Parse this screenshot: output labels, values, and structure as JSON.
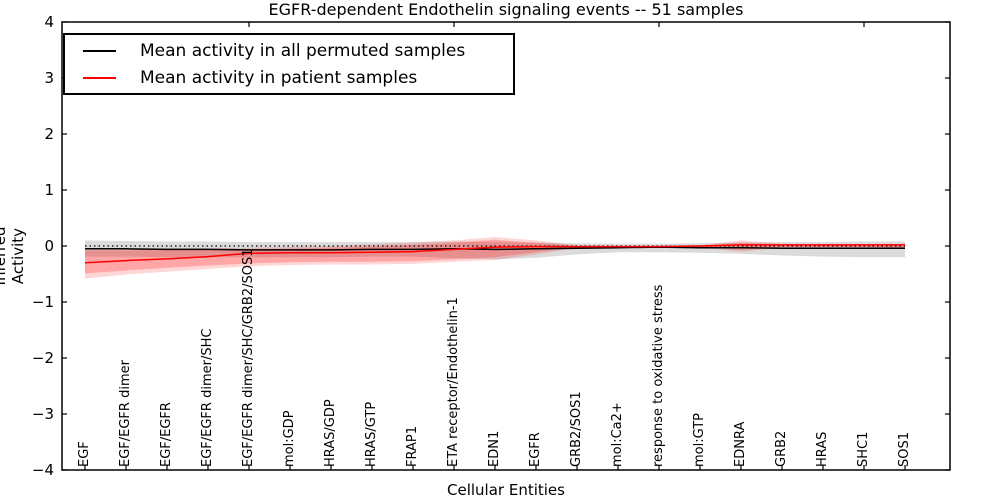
{
  "chart_data": {
    "type": "line",
    "title": "EGFR-dependent Endothelin signaling events -- 51 samples",
    "xlabel": "Cellular Entities",
    "ylabel": "Inferred Activity",
    "ylim": [
      -4,
      4
    ],
    "yticks": [
      4,
      3,
      2,
      1,
      0,
      -1,
      -2,
      -3,
      -4
    ],
    "grid": false,
    "legend_position": "upper left",
    "zero_reference_line": {
      "y": 0,
      "style": "dotted",
      "color": "#000000"
    },
    "categories": [
      "EGF",
      "EGF/EGFR dimer",
      "EGF/EGFR",
      "EGF/EGFR dimer/SHC",
      "EGF/EGFR dimer/SHC/GRB2/SOS1",
      "mol:GDP",
      "HRAS/GDP",
      "HRAS/GTP",
      "FRAP1",
      "ETA receptor/Endothelin-1",
      "EDN1",
      "EGFR",
      "GRB2/SOS1",
      "mol:Ca2+",
      "response to oxidative stress",
      "mol:GTP",
      "EDNRA",
      "GRB2",
      "HRAS",
      "SHC1",
      "SOS1"
    ],
    "top_tick_indices": [
      4,
      9,
      14,
      19
    ],
    "series": [
      {
        "name": "Mean activity in all permuted samples",
        "color": "#000000",
        "values": [
          -0.05,
          -0.05,
          -0.06,
          -0.06,
          -0.07,
          -0.07,
          -0.07,
          -0.06,
          -0.06,
          -0.05,
          -0.06,
          -0.05,
          -0.04,
          -0.03,
          -0.02,
          -0.03,
          -0.03,
          -0.04,
          -0.04,
          -0.04,
          -0.04
        ],
        "bands": [
          {
            "fill": "rgba(110,110,110,0.25)",
            "top": [
              0.1,
              0.09,
              0.08,
              0.08,
              0.07,
              0.07,
              0.07,
              0.07,
              0.07,
              0.08,
              0.07,
              0.06,
              0.05,
              0.04,
              0.04,
              0.05,
              0.06,
              0.07,
              0.07,
              0.08,
              0.08
            ],
            "bottom": [
              -0.19,
              -0.19,
              -0.2,
              -0.2,
              -0.2,
              -0.2,
              -0.2,
              -0.19,
              -0.19,
              -0.22,
              -0.24,
              -0.21,
              -0.15,
              -0.11,
              -0.11,
              -0.12,
              -0.14,
              -0.17,
              -0.19,
              -0.2,
              -0.2
            ]
          }
        ]
      },
      {
        "name": "Mean activity in patient samples",
        "color": "#ff0000",
        "values": [
          -0.3,
          -0.26,
          -0.23,
          -0.19,
          -0.13,
          -0.12,
          -0.12,
          -0.11,
          -0.1,
          -0.06,
          -0.02,
          -0.01,
          -0.01,
          -0.01,
          -0.01,
          0.0,
          0.02,
          0.02,
          0.02,
          0.02,
          0.02
        ],
        "bands": [
          {
            "fill": "rgba(255,0,0,0.16)",
            "top": [
              -0.04,
              -0.04,
              -0.04,
              -0.04,
              -0.03,
              -0.02,
              0.0,
              0.03,
              0.06,
              0.1,
              0.16,
              0.1,
              0.01,
              0.0,
              0.0,
              0.01,
              0.1,
              0.04,
              0.03,
              0.03,
              0.04
            ],
            "bottom": [
              -0.58,
              -0.51,
              -0.46,
              -0.41,
              -0.36,
              -0.34,
              -0.33,
              -0.33,
              -0.32,
              -0.28,
              -0.25,
              -0.15,
              -0.03,
              -0.02,
              -0.02,
              -0.03,
              -0.1,
              -0.03,
              -0.03,
              -0.03,
              -0.04
            ]
          },
          {
            "fill": "rgba(255,0,0,0.22)",
            "top": [
              -0.08,
              -0.08,
              -0.07,
              -0.07,
              -0.06,
              -0.05,
              -0.03,
              -0.01,
              0.02,
              0.06,
              0.11,
              0.06,
              0.0,
              -0.01,
              -0.01,
              0.0,
              0.06,
              0.02,
              0.02,
              0.02,
              0.03
            ],
            "bottom": [
              -0.49,
              -0.44,
              -0.39,
              -0.35,
              -0.31,
              -0.29,
              -0.28,
              -0.28,
              -0.27,
              -0.24,
              -0.2,
              -0.11,
              -0.02,
              -0.01,
              -0.01,
              -0.02,
              -0.07,
              -0.02,
              -0.02,
              -0.02,
              -0.03
            ]
          }
        ]
      }
    ]
  }
}
